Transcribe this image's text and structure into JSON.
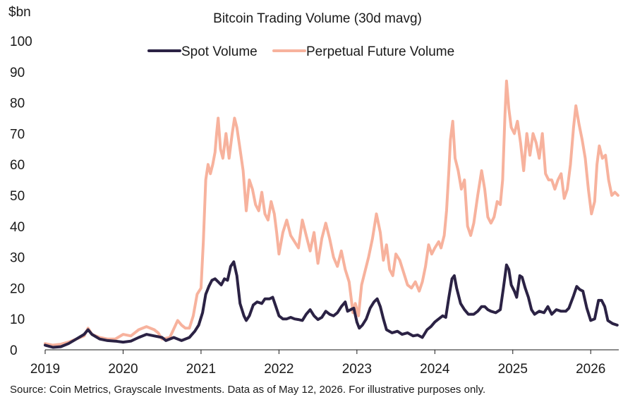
{
  "chart_data": {
    "type": "line",
    "title": "Bitcoin Trading Volume (30d mavg)",
    "ylabel": "$bn",
    "ylim": [
      0,
      100
    ],
    "xlim": [
      2019.0,
      2026.36
    ],
    "yticks": [
      "0",
      "10",
      "20",
      "30",
      "40",
      "50",
      "60",
      "70",
      "80",
      "90",
      "100"
    ],
    "xticks": [
      "2019",
      "2020",
      "2021",
      "2022",
      "2023",
      "2024",
      "2025",
      "2026"
    ],
    "legend_position": "top-center",
    "colors": {
      "spot": "#2b2244",
      "perp": "#f7b29d"
    },
    "series": [
      {
        "name": "Spot Volume",
        "color": "#2b2244",
        "points": [
          [
            2019.0,
            1.5
          ],
          [
            2019.1,
            0.8
          ],
          [
            2019.2,
            1.0
          ],
          [
            2019.3,
            2.0
          ],
          [
            2019.4,
            3.5
          ],
          [
            2019.5,
            5.0
          ],
          [
            2019.55,
            6.5
          ],
          [
            2019.6,
            5.0
          ],
          [
            2019.7,
            3.5
          ],
          [
            2019.8,
            3.0
          ],
          [
            2019.9,
            2.8
          ],
          [
            2020.0,
            2.5
          ],
          [
            2020.1,
            2.8
          ],
          [
            2020.2,
            4.0
          ],
          [
            2020.3,
            5.0
          ],
          [
            2020.4,
            4.5
          ],
          [
            2020.5,
            4.0
          ],
          [
            2020.55,
            3.0
          ],
          [
            2020.65,
            4.0
          ],
          [
            2020.75,
            3.0
          ],
          [
            2020.85,
            4.0
          ],
          [
            2020.92,
            6.0
          ],
          [
            2020.97,
            8.0
          ],
          [
            2021.02,
            12.0
          ],
          [
            2021.06,
            18.0
          ],
          [
            2021.1,
            20.5
          ],
          [
            2021.14,
            22.5
          ],
          [
            2021.18,
            23.0
          ],
          [
            2021.22,
            22.0
          ],
          [
            2021.26,
            21.0
          ],
          [
            2021.3,
            23.0
          ],
          [
            2021.34,
            22.5
          ],
          [
            2021.38,
            27.0
          ],
          [
            2021.42,
            28.5
          ],
          [
            2021.46,
            24.0
          ],
          [
            2021.5,
            15.0
          ],
          [
            2021.55,
            11.0
          ],
          [
            2021.58,
            9.5
          ],
          [
            2021.62,
            11.0
          ],
          [
            2021.67,
            14.5
          ],
          [
            2021.72,
            15.5
          ],
          [
            2021.78,
            15.0
          ],
          [
            2021.82,
            16.5
          ],
          [
            2021.88,
            16.5
          ],
          [
            2021.92,
            17.0
          ],
          [
            2021.96,
            14.0
          ],
          [
            2022.0,
            11.0
          ],
          [
            2022.05,
            10.0
          ],
          [
            2022.1,
            10.0
          ],
          [
            2022.15,
            10.5
          ],
          [
            2022.2,
            10.0
          ],
          [
            2022.25,
            9.8
          ],
          [
            2022.3,
            9.5
          ],
          [
            2022.35,
            11.5
          ],
          [
            2022.4,
            13.0
          ],
          [
            2022.45,
            11.0
          ],
          [
            2022.5,
            9.8
          ],
          [
            2022.55,
            10.5
          ],
          [
            2022.6,
            12.5
          ],
          [
            2022.65,
            11.5
          ],
          [
            2022.7,
            11.0
          ],
          [
            2022.75,
            12.0
          ],
          [
            2022.8,
            14.0
          ],
          [
            2022.85,
            15.5
          ],
          [
            2022.88,
            12.5
          ],
          [
            2022.92,
            13.0
          ],
          [
            2022.96,
            13.5
          ],
          [
            2023.0,
            9.0
          ],
          [
            2023.03,
            7.0
          ],
          [
            2023.07,
            8.0
          ],
          [
            2023.12,
            10.0
          ],
          [
            2023.17,
            13.5
          ],
          [
            2023.22,
            15.5
          ],
          [
            2023.26,
            16.5
          ],
          [
            2023.3,
            14.0
          ],
          [
            2023.34,
            10.0
          ],
          [
            2023.38,
            6.5
          ],
          [
            2023.45,
            5.5
          ],
          [
            2023.52,
            6.0
          ],
          [
            2023.58,
            5.0
          ],
          [
            2023.65,
            5.5
          ],
          [
            2023.72,
            4.5
          ],
          [
            2023.78,
            4.8
          ],
          [
            2023.84,
            4.0
          ],
          [
            2023.9,
            6.5
          ],
          [
            2023.95,
            7.5
          ],
          [
            2024.0,
            9.0
          ],
          [
            2024.05,
            10.0
          ],
          [
            2024.1,
            11.0
          ],
          [
            2024.14,
            10.5
          ],
          [
            2024.18,
            17.0
          ],
          [
            2024.22,
            23.0
          ],
          [
            2024.25,
            24.0
          ],
          [
            2024.28,
            20.0
          ],
          [
            2024.33,
            15.0
          ],
          [
            2024.38,
            13.0
          ],
          [
            2024.43,
            11.5
          ],
          [
            2024.5,
            11.5
          ],
          [
            2024.55,
            12.5
          ],
          [
            2024.6,
            14.0
          ],
          [
            2024.64,
            14.0
          ],
          [
            2024.68,
            13.0
          ],
          [
            2024.72,
            12.5
          ],
          [
            2024.78,
            12.0
          ],
          [
            2024.84,
            13.0
          ],
          [
            2024.88,
            20.0
          ],
          [
            2024.92,
            27.5
          ],
          [
            2024.95,
            26.0
          ],
          [
            2024.98,
            21.0
          ],
          [
            2025.02,
            19.0
          ],
          [
            2025.05,
            17.0
          ],
          [
            2025.09,
            24.0
          ],
          [
            2025.12,
            23.5
          ],
          [
            2025.16,
            20.0
          ],
          [
            2025.2,
            17.0
          ],
          [
            2025.24,
            13.0
          ],
          [
            2025.28,
            11.5
          ],
          [
            2025.34,
            12.5
          ],
          [
            2025.4,
            12.0
          ],
          [
            2025.45,
            14.0
          ],
          [
            2025.5,
            11.5
          ],
          [
            2025.56,
            13.0
          ],
          [
            2025.62,
            12.5
          ],
          [
            2025.68,
            12.5
          ],
          [
            2025.72,
            13.5
          ],
          [
            2025.78,
            17.5
          ],
          [
            2025.82,
            20.5
          ],
          [
            2025.86,
            19.5
          ],
          [
            2025.9,
            19.0
          ],
          [
            2025.95,
            13.5
          ],
          [
            2026.0,
            9.5
          ],
          [
            2026.05,
            10.0
          ],
          [
            2026.1,
            16.0
          ],
          [
            2026.14,
            16.0
          ],
          [
            2026.18,
            14.0
          ],
          [
            2026.22,
            9.5
          ],
          [
            2026.28,
            8.5
          ],
          [
            2026.34,
            8.0
          ]
        ]
      },
      {
        "name": "Perpetual Future Volume",
        "color": "#f7b29d",
        "points": [
          [
            2019.0,
            2.0
          ],
          [
            2019.1,
            1.5
          ],
          [
            2019.2,
            1.8
          ],
          [
            2019.3,
            2.5
          ],
          [
            2019.4,
            3.5
          ],
          [
            2019.5,
            4.5
          ],
          [
            2019.55,
            7.0
          ],
          [
            2019.6,
            5.0
          ],
          [
            2019.7,
            4.0
          ],
          [
            2019.8,
            3.5
          ],
          [
            2019.9,
            3.5
          ],
          [
            2020.0,
            5.0
          ],
          [
            2020.1,
            4.5
          ],
          [
            2020.2,
            6.5
          ],
          [
            2020.3,
            7.5
          ],
          [
            2020.4,
            6.5
          ],
          [
            2020.45,
            5.5
          ],
          [
            2020.5,
            3.5
          ],
          [
            2020.6,
            4.0
          ],
          [
            2020.7,
            9.5
          ],
          [
            2020.75,
            8.0
          ],
          [
            2020.8,
            7.0
          ],
          [
            2020.85,
            7.0
          ],
          [
            2020.9,
            11.0
          ],
          [
            2020.95,
            18.0
          ],
          [
            2021.0,
            20.0
          ],
          [
            2021.03,
            35.0
          ],
          [
            2021.06,
            55.0
          ],
          [
            2021.09,
            60.0
          ],
          [
            2021.12,
            57.0
          ],
          [
            2021.15,
            60.0
          ],
          [
            2021.18,
            64.0
          ],
          [
            2021.2,
            70.0
          ],
          [
            2021.22,
            75.0
          ],
          [
            2021.25,
            65.0
          ],
          [
            2021.28,
            62.0
          ],
          [
            2021.32,
            70.0
          ],
          [
            2021.36,
            62.0
          ],
          [
            2021.4,
            70.0
          ],
          [
            2021.43,
            75.0
          ],
          [
            2021.46,
            72.0
          ],
          [
            2021.5,
            65.0
          ],
          [
            2021.54,
            58.0
          ],
          [
            2021.58,
            45.0
          ],
          [
            2021.62,
            55.0
          ],
          [
            2021.66,
            52.0
          ],
          [
            2021.7,
            47.0
          ],
          [
            2021.74,
            45.0
          ],
          [
            2021.78,
            51.0
          ],
          [
            2021.82,
            44.0
          ],
          [
            2021.86,
            42.0
          ],
          [
            2021.9,
            48.0
          ],
          [
            2021.94,
            44.0
          ],
          [
            2021.97,
            38.0
          ],
          [
            2022.0,
            31.0
          ],
          [
            2022.05,
            38.0
          ],
          [
            2022.1,
            42.0
          ],
          [
            2022.15,
            37.0
          ],
          [
            2022.2,
            35.0
          ],
          [
            2022.25,
            33.0
          ],
          [
            2022.3,
            42.0
          ],
          [
            2022.35,
            37.0
          ],
          [
            2022.4,
            32.0
          ],
          [
            2022.45,
            38.0
          ],
          [
            2022.5,
            28.0
          ],
          [
            2022.55,
            36.0
          ],
          [
            2022.6,
            41.0
          ],
          [
            2022.65,
            36.0
          ],
          [
            2022.7,
            30.0
          ],
          [
            2022.75,
            27.0
          ],
          [
            2022.8,
            32.0
          ],
          [
            2022.85,
            26.0
          ],
          [
            2022.9,
            22.0
          ],
          [
            2022.95,
            12.0
          ],
          [
            2022.98,
            15.0
          ],
          [
            2023.02,
            11.0
          ],
          [
            2023.06,
            21.0
          ],
          [
            2023.1,
            25.0
          ],
          [
            2023.15,
            30.0
          ],
          [
            2023.2,
            36.0
          ],
          [
            2023.25,
            44.0
          ],
          [
            2023.3,
            38.0
          ],
          [
            2023.34,
            29.0
          ],
          [
            2023.38,
            34.0
          ],
          [
            2023.42,
            26.0
          ],
          [
            2023.46,
            24.0
          ],
          [
            2023.5,
            31.0
          ],
          [
            2023.55,
            29.0
          ],
          [
            2023.6,
            25.0
          ],
          [
            2023.65,
            21.0
          ],
          [
            2023.7,
            20.0
          ],
          [
            2023.75,
            22.0
          ],
          [
            2023.8,
            19.0
          ],
          [
            2023.84,
            22.0
          ],
          [
            2023.88,
            27.0
          ],
          [
            2023.92,
            34.0
          ],
          [
            2023.96,
            31.0
          ],
          [
            2024.0,
            33.0
          ],
          [
            2024.05,
            35.0
          ],
          [
            2024.08,
            33.0
          ],
          [
            2024.12,
            37.0
          ],
          [
            2024.15,
            45.0
          ],
          [
            2024.18,
            58.0
          ],
          [
            2024.2,
            68.0
          ],
          [
            2024.23,
            74.0
          ],
          [
            2024.26,
            62.0
          ],
          [
            2024.3,
            58.0
          ],
          [
            2024.34,
            52.0
          ],
          [
            2024.38,
            55.0
          ],
          [
            2024.42,
            40.0
          ],
          [
            2024.46,
            37.0
          ],
          [
            2024.5,
            41.0
          ],
          [
            2024.55,
            50.0
          ],
          [
            2024.6,
            58.0
          ],
          [
            2024.64,
            52.0
          ],
          [
            2024.68,
            43.0
          ],
          [
            2024.72,
            41.0
          ],
          [
            2024.76,
            43.0
          ],
          [
            2024.8,
            48.0
          ],
          [
            2024.84,
            47.0
          ],
          [
            2024.87,
            55.0
          ],
          [
            2024.9,
            76.0
          ],
          [
            2024.92,
            87.0
          ],
          [
            2024.95,
            78.0
          ],
          [
            2024.98,
            72.0
          ],
          [
            2025.02,
            70.0
          ],
          [
            2025.06,
            74.0
          ],
          [
            2025.1,
            67.0
          ],
          [
            2025.14,
            58.0
          ],
          [
            2025.18,
            70.0
          ],
          [
            2025.22,
            63.0
          ],
          [
            2025.26,
            70.0
          ],
          [
            2025.3,
            67.0
          ],
          [
            2025.34,
            62.0
          ],
          [
            2025.38,
            70.0
          ],
          [
            2025.42,
            57.0
          ],
          [
            2025.46,
            55.0
          ],
          [
            2025.5,
            55.0
          ],
          [
            2025.54,
            52.0
          ],
          [
            2025.58,
            55.0
          ],
          [
            2025.62,
            57.0
          ],
          [
            2025.66,
            49.0
          ],
          [
            2025.7,
            52.0
          ],
          [
            2025.74,
            60.0
          ],
          [
            2025.78,
            72.0
          ],
          [
            2025.81,
            79.0
          ],
          [
            2025.85,
            73.0
          ],
          [
            2025.89,
            68.0
          ],
          [
            2025.93,
            62.0
          ],
          [
            2025.97,
            52.0
          ],
          [
            2026.01,
            44.0
          ],
          [
            2026.05,
            48.0
          ],
          [
            2026.08,
            60.0
          ],
          [
            2026.11,
            66.0
          ],
          [
            2026.15,
            62.0
          ],
          [
            2026.19,
            63.0
          ],
          [
            2026.23,
            55.0
          ],
          [
            2026.27,
            50.0
          ],
          [
            2026.31,
            51.0
          ],
          [
            2026.35,
            50.0
          ]
        ]
      }
    ]
  },
  "footer": {
    "source": "Source: Coin Metrics, Grayscale Investments. Data as of May 12, 2026. For illustrative purposes only."
  }
}
